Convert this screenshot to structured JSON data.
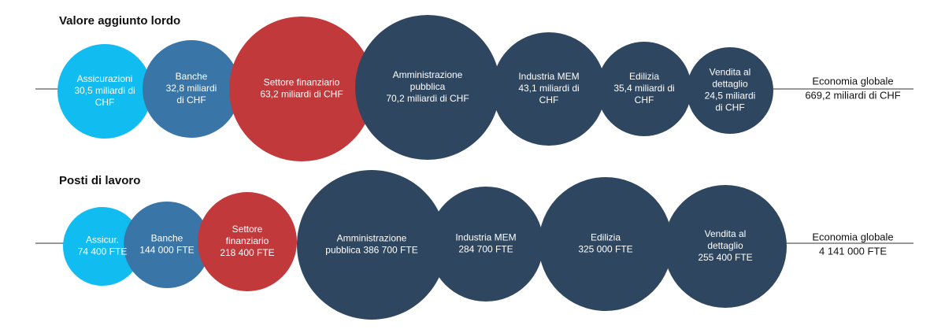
{
  "sections": [
    {
      "title": "Valore aggiunto lordo",
      "nodes": [
        {
          "lines": [
            "Assicurazioni",
            "30,5 miliardi di",
            "CHF"
          ]
        },
        {
          "lines": [
            "Banche",
            "32,8 miliardi",
            "di CHF"
          ]
        },
        {
          "lines": [
            "Settore finanziario",
            "63,2 miliardi di CHF"
          ]
        },
        {
          "lines": [
            "Amministrazione",
            "pubblica",
            "70,2 miliardi di CHF"
          ]
        },
        {
          "lines": [
            "Industria MEM",
            "43,1 miliardi di",
            "CHF"
          ]
        },
        {
          "lines": [
            "Edilizia",
            "35,4 miliardi di",
            "CHF"
          ]
        },
        {
          "lines": [
            "Vendita al",
            "dettaglio",
            "24,5 miliardi",
            "di CHF"
          ]
        }
      ],
      "total": {
        "label": "Economia globale",
        "value": "669,2 miliardi di CHF"
      }
    },
    {
      "title": "Posti di lavoro",
      "nodes": [
        {
          "lines": [
            "Assicur.",
            "74 400 FTE"
          ]
        },
        {
          "lines": [
            "Banche",
            "144 000 FTE"
          ]
        },
        {
          "lines": [
            "Settore",
            "finanziario",
            "218 400 FTE"
          ]
        },
        {
          "lines": [
            "Amministrazione",
            "pubblica 386 700 FTE"
          ]
        },
        {
          "lines": [
            "Industria MEM",
            "284 700 FTE"
          ]
        },
        {
          "lines": [
            "Edilizia",
            "325 000 FTE"
          ]
        },
        {
          "lines": [
            "Vendita al",
            "dettaglio",
            "255 400 FTE"
          ]
        }
      ],
      "total": {
        "label": "Economia globale",
        "value": "4 141 000 FTE"
      }
    }
  ]
}
